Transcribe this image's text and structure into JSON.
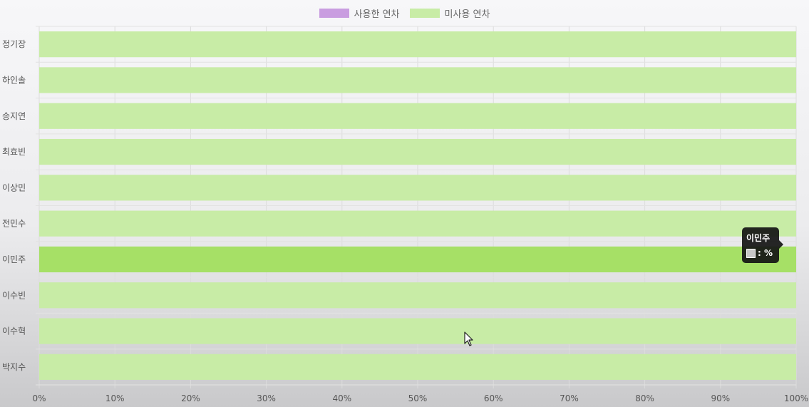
{
  "chart_data": {
    "type": "bar",
    "orientation": "horizontal",
    "stacked": true,
    "categories": [
      "정기장",
      "하인솔",
      "송지연",
      "최효빈",
      "이상민",
      "전민수",
      "이민주",
      "이수빈",
      "이수혁",
      "박지수"
    ],
    "series": [
      {
        "name": "사용한 연차",
        "color": "#c99de0",
        "values": [
          0,
          0,
          0,
          0,
          0,
          0,
          0,
          0,
          0,
          0
        ]
      },
      {
        "name": "미사용 연차",
        "color": "#c8eca6",
        "values": [
          100,
          100,
          100,
          100,
          100,
          100,
          100,
          100,
          100,
          100
        ]
      }
    ],
    "xlim": [
      0,
      100
    ],
    "xticks": [
      "0%",
      "10%",
      "20%",
      "30%",
      "40%",
      "50%",
      "60%",
      "70%",
      "80%",
      "90%",
      "100%"
    ],
    "grid": true,
    "legend_position": "top",
    "highlighted_category": "이민주",
    "highlight_color": "#a6e066"
  },
  "tooltip": {
    "title": "이민주",
    "value": ": %"
  }
}
